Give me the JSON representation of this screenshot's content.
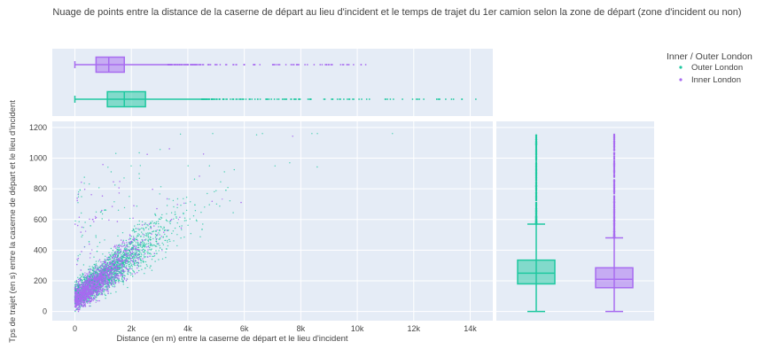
{
  "chart_data": {
    "type": "scatter",
    "title": "Nuage de points entre la distance de la caserne de départ au lieu d'incident et le temps de trajet du 1er camion selon la zone de départ (zone d'incident ou non)",
    "xlabel": "Distance (en m) entre la caserne de départ et le lieu d'incident",
    "ylabel": "Tps de trajet (en s) entre la caserne de départ et le lieu d'incident",
    "xlim": [
      -800,
      14800
    ],
    "ylim": [
      -60,
      1240
    ],
    "x_ticks": [
      0,
      2000,
      4000,
      6000,
      8000,
      10000,
      12000,
      14000
    ],
    "x_tick_labels": [
      "0",
      "2k",
      "4k",
      "6k",
      "8k",
      "10k",
      "12k",
      "14k"
    ],
    "y_ticks": [
      0,
      200,
      400,
      600,
      800,
      1000,
      1200
    ],
    "y_tick_labels": [
      "0",
      "200",
      "400",
      "600",
      "800",
      "1000",
      "1200"
    ],
    "grid": true,
    "legend": {
      "title": "Inner / Outer London",
      "placement": "top-right"
    },
    "series": [
      {
        "name": "Outer London",
        "color": "#1fc8a0",
        "x_box": {
          "min": 0,
          "q1": 1150,
          "median": 1750,
          "q3": 2500,
          "upper_fence": 4500,
          "outlier_max": 14200
        },
        "y_box": {
          "min": 0,
          "q1": 180,
          "median": 250,
          "q3": 335,
          "upper_fence": 570,
          "max": 1160
        },
        "scatter_profile": {
          "x_max": 14200,
          "y_max": 1160,
          "typical_speed_m_per_s": 7.5,
          "y_intercept": 95
        }
      },
      {
        "name": "Inner London",
        "color": "#a86cf0",
        "x_box": {
          "min": 0,
          "q1": 750,
          "median": 1200,
          "q3": 1750,
          "upper_fence": 3300,
          "outlier_max": 10300
        },
        "y_box": {
          "min": 0,
          "q1": 155,
          "median": 210,
          "q3": 285,
          "upper_fence": 480,
          "max": 1160
        },
        "scatter_profile": {
          "x_max": 10300,
          "y_max": 1160,
          "typical_speed_m_per_s": 6.8,
          "y_intercept": 75
        }
      }
    ]
  }
}
